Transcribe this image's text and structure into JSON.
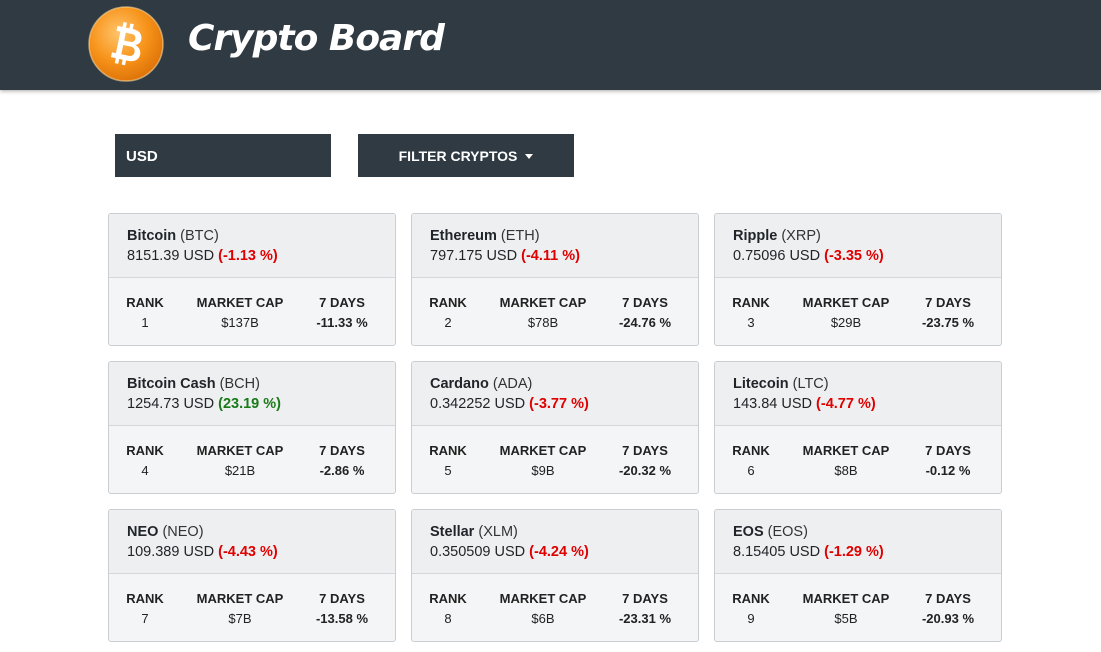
{
  "header": {
    "brand": "Crypto Board",
    "logo_icon": "bitcoin-logo-icon"
  },
  "controls": {
    "currency": "USD",
    "filter_label": "FILTER CRYPTOS"
  },
  "labels": {
    "rank": "RANK",
    "market_cap": "MARKET CAP",
    "seven_days": "7 DAYS",
    "currency": "USD"
  },
  "colors": {
    "negative": "#e00000",
    "positive": "#1a7a1a",
    "dark": "#2f3a42"
  },
  "cards": [
    {
      "name": "Bitcoin",
      "symbol": "(BTC)",
      "price": "8151.39",
      "change": "(-1.13 %)",
      "rank": "1",
      "market_cap": "$137B",
      "seven_days": "-11.33 %"
    },
    {
      "name": "Ethereum",
      "symbol": "(ETH)",
      "price": "797.175",
      "change": "(-4.11 %)",
      "rank": "2",
      "market_cap": "$78B",
      "seven_days": "-24.76 %"
    },
    {
      "name": "Ripple",
      "symbol": "(XRP)",
      "price": "0.75096",
      "change": "(-3.35 %)",
      "rank": "3",
      "market_cap": "$29B",
      "seven_days": "-23.75 %"
    },
    {
      "name": "Bitcoin Cash",
      "symbol": "(BCH)",
      "price": "1254.73",
      "change": "(23.19 %)",
      "rank": "4",
      "market_cap": "$21B",
      "seven_days": "-2.86 %"
    },
    {
      "name": "Cardano",
      "symbol": "(ADA)",
      "price": "0.342252",
      "change": "(-3.77 %)",
      "rank": "5",
      "market_cap": "$9B",
      "seven_days": "-20.32 %"
    },
    {
      "name": "Litecoin",
      "symbol": "(LTC)",
      "price": "143.84",
      "change": "(-4.77 %)",
      "rank": "6",
      "market_cap": "$8B",
      "seven_days": "-0.12 %"
    },
    {
      "name": "NEO",
      "symbol": "(NEO)",
      "price": "109.389",
      "change": "(-4.43 %)",
      "rank": "7",
      "market_cap": "$7B",
      "seven_days": "-13.58 %"
    },
    {
      "name": "Stellar",
      "symbol": "(XLM)",
      "price": "0.350509",
      "change": "(-4.24 %)",
      "rank": "8",
      "market_cap": "$6B",
      "seven_days": "-23.31 %"
    },
    {
      "name": "EOS",
      "symbol": "(EOS)",
      "price": "8.15405",
      "change": "(-1.29 %)",
      "rank": "9",
      "market_cap": "$5B",
      "seven_days": "-20.93 %"
    }
  ]
}
